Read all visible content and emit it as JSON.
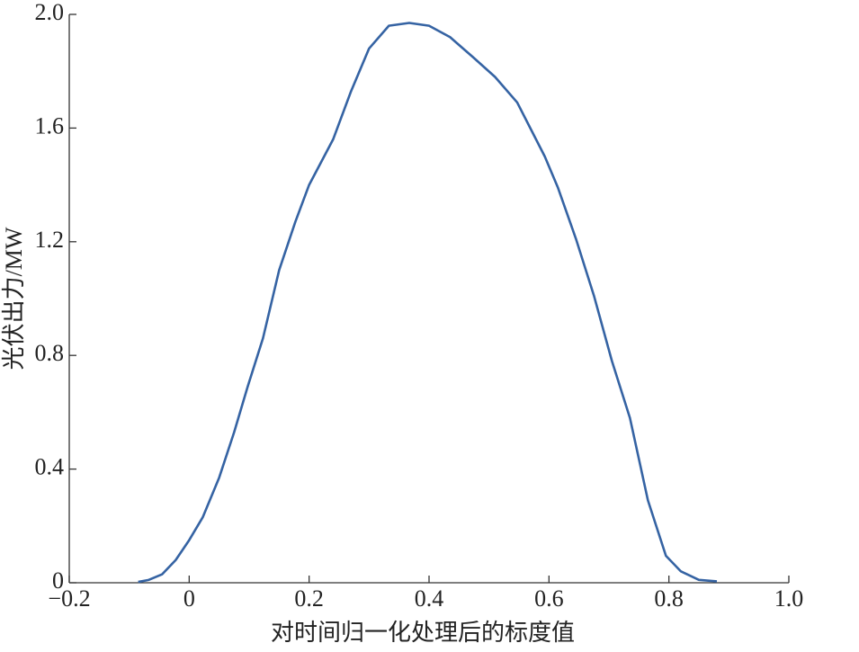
{
  "chart_data": {
    "type": "line",
    "x_label": "对时间归一化处理后的标度值",
    "y_label": "光伏出力/MW",
    "x": [
      -0.085,
      -0.0675,
      -0.045,
      -0.0225,
      0,
      0.0225,
      0.05,
      0.075,
      0.0975,
      0.123,
      0.15,
      0.177,
      0.2,
      0.24,
      0.27,
      0.3,
      0.333,
      0.367,
      0.4,
      0.435,
      0.473,
      0.51,
      0.547,
      0.593,
      0.615,
      0.645,
      0.675,
      0.705,
      0.735,
      0.765,
      0.795,
      0.82,
      0.85,
      0.88
    ],
    "series": [
      {
        "color": "#3563a3",
        "values": [
          0.003,
          0.01,
          0.03,
          0.08,
          0.15,
          0.23,
          0.37,
          0.53,
          0.69,
          0.86,
          1.1,
          1.27,
          1.4,
          1.56,
          1.73,
          1.88,
          1.96,
          1.97,
          1.96,
          1.92,
          1.85,
          1.78,
          1.69,
          1.5,
          1.39,
          1.21,
          1.01,
          0.78,
          0.58,
          0.29,
          0.095,
          0.04,
          0.01,
          0.005
        ]
      }
    ],
    "xlim": [
      -0.2,
      1.0
    ],
    "ylim": [
      0,
      2.0
    ],
    "xticks": [
      {
        "value": -0.2,
        "label": "−0.2"
      },
      0,
      0.2,
      0.4,
      0.6,
      0.8,
      {
        "value": 1.0,
        "label": "1.0"
      }
    ],
    "yticks": [
      0,
      0.4,
      0.8,
      1.2,
      1.6,
      {
        "value": 2.0,
        "label": "2.0"
      }
    ]
  }
}
